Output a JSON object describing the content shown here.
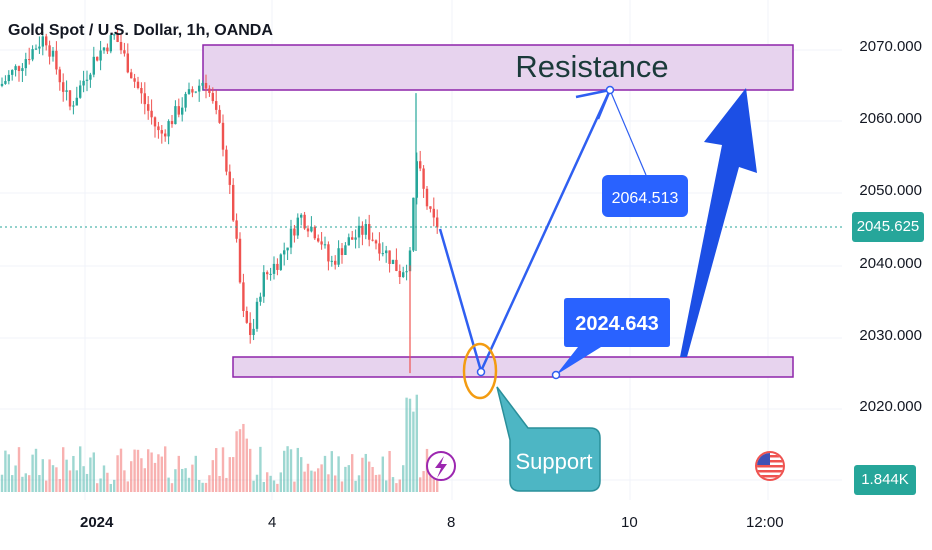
{
  "header": {
    "title": "Gold Spot / U.S. Dollar, 1h, OANDA"
  },
  "price_axis": {
    "ticks": [
      "2070.000",
      "2060.000",
      "2050.000",
      "2040.000",
      "2030.000",
      "2020.000"
    ],
    "current_price": "2045.625",
    "volume_label": "1.844K"
  },
  "time_axis": {
    "labels": [
      "2024",
      "4",
      "8",
      "10",
      "12:00"
    ]
  },
  "annotations": {
    "resistance_label": "Resistance",
    "support_label": "Support",
    "target_price": "2064.513",
    "support_price": "2024.643"
  },
  "colors": {
    "up": "#26a69a",
    "down": "#ef5350",
    "zone_fill": "#e7d3ee",
    "zone_border": "#8e24aa",
    "arrow": "#2f5ff1",
    "callout": "#2962ff",
    "support_callout": "#4db6c4",
    "circle": "#f39c12"
  },
  "icons": {
    "lightning": "lightning-icon",
    "flag": "us-flag-icon"
  },
  "chart_data": {
    "type": "candlestick",
    "symbol": "XAUUSD",
    "timeframe": "1h",
    "ylim": [
      2015,
      2076
    ],
    "resistance_zone": [
      2064.5,
      2070.5
    ],
    "support_zone": [
      2024.8,
      2027.0
    ],
    "current_price": 2045.625,
    "projected_path": [
      2045.6,
      2025.0,
      2064.5
    ],
    "annotated_prices": [
      2064.513,
      2024.643
    ],
    "volume_last": "1.844K",
    "grid": true,
    "legend": "none"
  }
}
